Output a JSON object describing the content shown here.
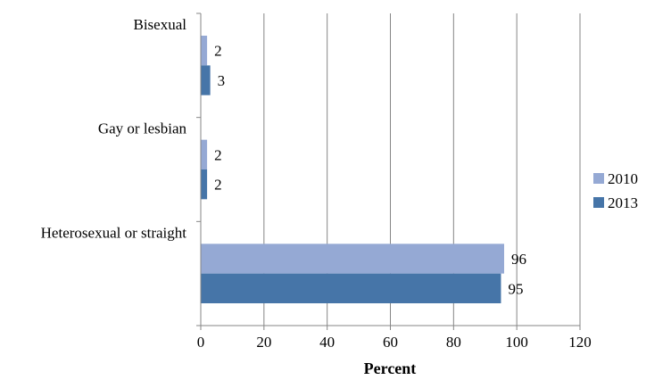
{
  "chart_data": {
    "type": "bar",
    "orientation": "horizontal",
    "categories": [
      "Bisexual",
      "Gay or lesbian",
      "Heterosexual or straight"
    ],
    "series": [
      {
        "name": "2010",
        "values": [
          2,
          2,
          96
        ],
        "labels": [
          "2",
          "2",
          "96"
        ],
        "color": "#95a9d4"
      },
      {
        "name": "2013",
        "values": [
          3,
          2,
          95
        ],
        "labels": [
          "3",
          "2",
          "95"
        ],
        "color": "#4675a8"
      }
    ],
    "xlabel": "Percent",
    "xlim": [
      0,
      120
    ],
    "xticks": [
      0,
      20,
      40,
      60,
      80,
      100,
      120
    ],
    "grid": true,
    "legend_position": "right"
  }
}
